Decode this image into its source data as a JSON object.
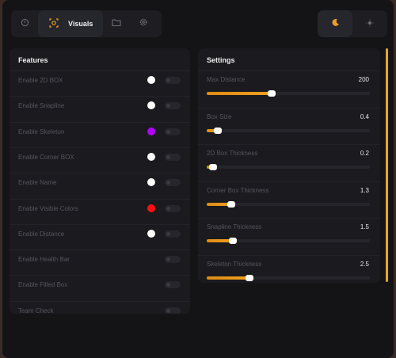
{
  "nav": {
    "active_tab_label": "Visuals"
  },
  "colors": {
    "accent": "#f0a020",
    "white_dot": "#ffffff",
    "purple_dot": "#b200ff",
    "red_dot": "#ff1010"
  },
  "features": {
    "title": "Features",
    "items": [
      {
        "label": "Enable 2D BOX",
        "dot": "#ffffff"
      },
      {
        "label": "Enable Snapline",
        "dot": "#ffffff"
      },
      {
        "label": "Enable Skeleton",
        "dot": "#b200ff"
      },
      {
        "label": "Enable Corner BOX",
        "dot": "#ffffff"
      },
      {
        "label": "Enable Name",
        "dot": "#ffffff"
      },
      {
        "label": "Enable Visible Colors",
        "dot": "#ff1010"
      },
      {
        "label": "Enable Distance",
        "dot": "#ffffff"
      },
      {
        "label": "Enable Health Bar",
        "dot": null
      },
      {
        "label": "Enable Filled Box",
        "dot": null
      },
      {
        "label": "Team Check",
        "dot": null
      }
    ]
  },
  "settings": {
    "title": "Settings",
    "items": [
      {
        "label": "Max Distance",
        "value": "200",
        "fraction": 0.4
      },
      {
        "label": "Box Size",
        "value": "0.4",
        "fraction": 0.07
      },
      {
        "label": "2D Box Thickness",
        "value": "0.2",
        "fraction": 0.04
      },
      {
        "label": "Corner Box Thickness",
        "value": "1.3",
        "fraction": 0.15
      },
      {
        "label": "Snapline Thickness",
        "value": "1.5",
        "fraction": 0.16
      },
      {
        "label": "Skeleton Thickness",
        "value": "2.5",
        "fraction": 0.26
      }
    ]
  }
}
